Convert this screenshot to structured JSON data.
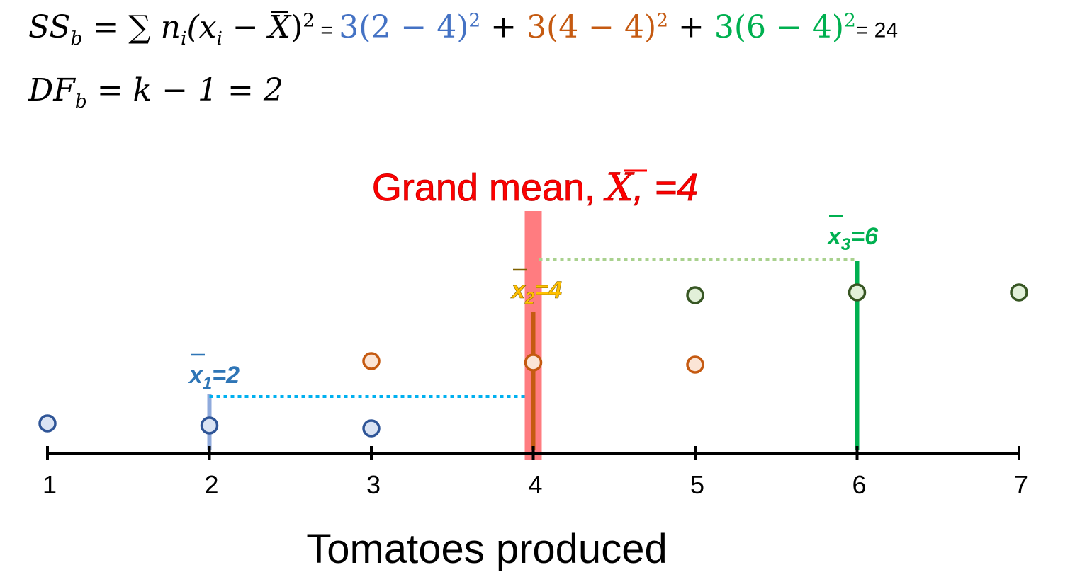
{
  "equations": {
    "ss_lhs": "SS",
    "ss_sub": "b",
    "ss_formula_a": " = ∑ n",
    "ss_formula_i1": "i",
    "ss_formula_b": "(x",
    "ss_formula_i2": "i",
    "ss_formula_c": " − ",
    "ss_formula_xbar": "X",
    "ss_formula_d": ")",
    "ss_formula_sq": "2",
    "eq_sign_1": " = ",
    "term1": "3(2 − 4)",
    "term1_sq": "2",
    "plus1": " + ",
    "term2": "3(4 − 4)",
    "term2_sq": "2",
    "plus2": " + ",
    "term3": "3(6 − 4)",
    "term3_sq": "2",
    "eq_sign_2": "= 24",
    "df_lhs": "DF",
    "df_sub": "b",
    "df_rhs": " = k − 1 = 2"
  },
  "grand_mean": {
    "label_prefix": "Grand mean, ",
    "symbol": "X",
    "label_suffix": ", =4",
    "value": 4,
    "color": "#ff0000",
    "bar_color": "#ff7c80"
  },
  "axis": {
    "label": "Tomatoes produced",
    "ticks": [
      "1",
      "2",
      "3",
      "4",
      "5",
      "6",
      "7"
    ],
    "min": 1,
    "max": 7
  },
  "groups": [
    {
      "mean": 2,
      "mean_label_x": "x",
      "mean_label_sub": "1",
      "mean_label_val": "=2",
      "color": "#4472c4",
      "point_fill": "#dae3f3",
      "point_stroke": "#2f5597",
      "label_color": "#2e75b6",
      "line_color": "#8faadc",
      "dash_color": "#00b0f0",
      "points": [
        1,
        2,
        3
      ]
    },
    {
      "mean": 4,
      "mean_label_x": "x",
      "mean_label_sub": "2",
      "mean_label_val": "=4",
      "color": "#c55a11",
      "point_fill": "#fbe5d6",
      "point_stroke": "#c55a11",
      "label_color": "#ffc000",
      "line_color": "#c55a11",
      "dash_color": "#c55a11",
      "points": [
        3,
        4,
        5
      ]
    },
    {
      "mean": 6,
      "mean_label_x": "x",
      "mean_label_sub": "3",
      "mean_label_val": "=6",
      "color": "#00b050",
      "point_fill": "#e2f0d9",
      "point_stroke": "#375623",
      "label_color": "#00b050",
      "line_color": "#00b050",
      "dash_color": "#a9d18e",
      "points": [
        5,
        6,
        7
      ]
    }
  ]
}
